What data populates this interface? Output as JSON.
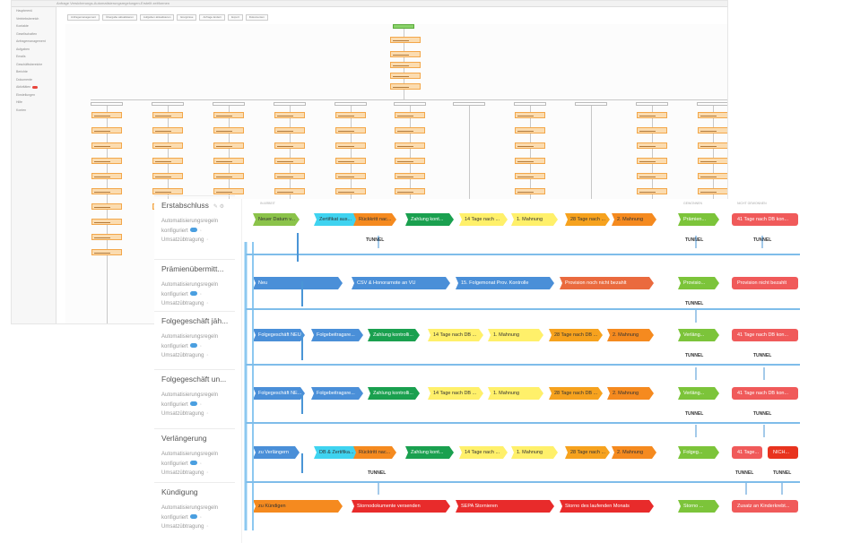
{
  "pipelines": [
    {
      "name": "Erstabschluss",
      "meta": [
        "Automatisierungsregeln",
        "konfiguriert",
        "Umsatzübtragung"
      ],
      "stages": [
        {
          "label": "Neuer Datum v...",
          "color": "#8bc34a"
        },
        {
          "label": "Zertifikat aus...",
          "color": "#3fd3f0"
        },
        {
          "label": "Rückkritt nac...",
          "color": "#f58a1f"
        },
        {
          "label": "Zahlung kont...",
          "color": "#1aa04f"
        },
        {
          "label": "14 Tage nach ...",
          "color": "#fff06a"
        },
        {
          "label": "1. Mahnung",
          "color": "#fff06a"
        },
        {
          "label": "28 Tage nach ...",
          "color": "#f6a21e"
        },
        {
          "label": "2. Mahnung",
          "color": "#f58a1f"
        }
      ],
      "won": {
        "label": "Prämien...",
        "color": "#7cc43a"
      },
      "lost": {
        "label": "41 Tage nach DB kon...",
        "color": "#f05a5a"
      },
      "tunnels": [
        "TUNNEL",
        "TUNNEL",
        "TUNNEL"
      ]
    },
    {
      "name": "Prämienübermitt...",
      "meta": [
        "Automatisierungsregeln",
        "konfiguriert",
        "Umsatzübtragung"
      ],
      "stages": [
        {
          "label": "Neu",
          "color": "#4a8fd8"
        },
        {
          "label": "CSV & Honorarnote an VU",
          "color": "#4a8fd8"
        },
        {
          "label": "15. Folgemonat Prov. Kontrolle",
          "color": "#4a8fd8"
        },
        {
          "label": "Provision noch nicht bezahlt",
          "color": "#ea6a3e"
        }
      ],
      "won": {
        "label": "Provisio...",
        "color": "#7cc43a"
      },
      "lost": {
        "label": "Provision nicht bezahlt",
        "color": "#f05a5a"
      },
      "tunnels": [
        "TUNNEL"
      ]
    },
    {
      "name": "Folgegeschäft jäh...",
      "meta": [
        "Automatisierungsregeln",
        "konfiguriert",
        "Umsatzübtragung"
      ],
      "stages": [
        {
          "label": "Folgegeschäft NEU",
          "color": "#4a8fd8"
        },
        {
          "label": "Folgebeitragsre...",
          "color": "#4a8fd8"
        },
        {
          "label": "Zahlung kontrolli...",
          "color": "#1aa04f"
        },
        {
          "label": "14 Tage nach DB ...",
          "color": "#fff06a"
        },
        {
          "label": "1. Mahnung",
          "color": "#fff06a"
        },
        {
          "label": "28 Tage nach DB ...",
          "color": "#f6a21e"
        },
        {
          "label": "2. Mahnung",
          "color": "#f58a1f"
        }
      ],
      "won": {
        "label": "Verläng...",
        "color": "#7cc43a"
      },
      "lost": {
        "label": "41 Tage nach DB kon...",
        "color": "#f05a5a"
      },
      "tunnels": [
        "TUNNEL",
        "TUNNEL"
      ]
    },
    {
      "name": "Folgegeschäft un...",
      "meta": [
        "Automatisierungsregeln",
        "konfiguriert",
        "Umsatzübtragung"
      ],
      "stages": [
        {
          "label": "Folgegeschäft NE...",
          "color": "#4a8fd8"
        },
        {
          "label": "Folgebeitragsre...",
          "color": "#4a8fd8"
        },
        {
          "label": "Zahlung kontrolli...",
          "color": "#1aa04f"
        },
        {
          "label": "14 Tage nach DB ...",
          "color": "#fff06a"
        },
        {
          "label": "1. Mahnung",
          "color": "#fff06a"
        },
        {
          "label": "28 Tage nach DB ...",
          "color": "#f6a21e"
        },
        {
          "label": "2. Mahnung",
          "color": "#f58a1f"
        }
      ],
      "won": {
        "label": "Verläng...",
        "color": "#7cc43a"
      },
      "lost": {
        "label": "41 Tage nach DB kon...",
        "color": "#f05a5a"
      },
      "tunnels": [
        "TUNNEL",
        "TUNNEL"
      ]
    },
    {
      "name": "Verlängerung",
      "meta": [
        "Automatisierungsregeln",
        "konfiguriert",
        "Umsatzübtragung"
      ],
      "stages": [
        {
          "label": "zu Verlängern",
          "color": "#4a8fd8"
        },
        {
          "label": "DB & Zertifika...",
          "color": "#3fd3f0"
        },
        {
          "label": "Rücktritt nac...",
          "color": "#f58a1f"
        },
        {
          "label": "Zahlung kont...",
          "color": "#1aa04f"
        },
        {
          "label": "14 Tage nach ...",
          "color": "#fff06a"
        },
        {
          "label": "1. Mahnung",
          "color": "#fff06a"
        },
        {
          "label": "28 Tage nach ...",
          "color": "#f6a21e"
        },
        {
          "label": "2. Mahnung",
          "color": "#f58a1f"
        }
      ],
      "won": {
        "label": "Folgeg...",
        "color": "#7cc43a"
      },
      "lost": {
        "label": "41 Tage...",
        "color": "#f05a5a"
      },
      "lost2": {
        "label": "NICH...",
        "color": "#e8331e"
      },
      "tunnels": [
        "TUNNEL",
        "TUNNEL",
        "TUNNEL"
      ]
    },
    {
      "name": "Kündigung",
      "meta": [
        "Automatisierungsregeln",
        "konfiguriert",
        "Umsatzübtragung"
      ],
      "stages": [
        {
          "label": "zu Kündigen",
          "color": "#f58a1f"
        },
        {
          "label": "Stornodokumente versenden",
          "color": "#e82b2b"
        },
        {
          "label": "SEPA Stornieren",
          "color": "#e82b2b"
        },
        {
          "label": "Storno des laufenden Monats",
          "color": "#e82b2b"
        }
      ],
      "won": {
        "label": "Storno ...",
        "color": "#7cc43a"
      },
      "lost": {
        "label": "Zusatz an Kinderkrebt...",
        "color": "#f05a5a"
      },
      "tunnels": []
    }
  ],
  "headers": {
    "col_a": "IN ARBEIT",
    "col_b": "GEWONNEN",
    "col_c": "NICHT GEWONNEN"
  },
  "bg": {
    "title": "Anfrage Versicherungs-Automatisierungsregelungen-Erstellt zeitformen",
    "toolbar": [
      "Anfragemanagement",
      "Übergabe aktualisieren",
      "Aufgaben aktualisieren",
      "Ereignisse",
      "Anfrage ändern",
      "Export",
      "Dokumenten"
    ],
    "sidebar": [
      "Hauptmenü",
      "Vertriebsbereich",
      "Kontakte",
      "Gesellschaften",
      "Anfragemanagement",
      "Aufgaben",
      "Emails",
      "Geschäftsbereiche",
      "Berichte",
      "Dokumente",
      "Aktivitäten",
      "Einstellungen",
      "Hilfe",
      "Konten"
    ]
  }
}
